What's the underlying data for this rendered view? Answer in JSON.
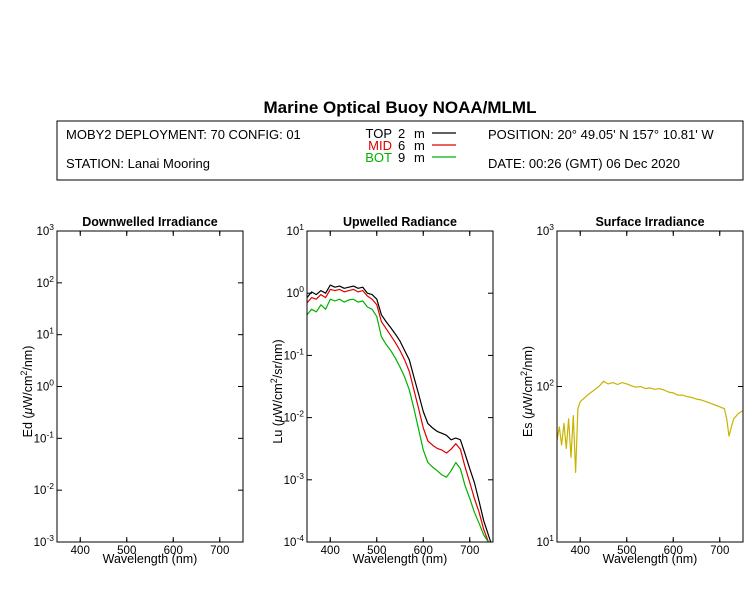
{
  "title": "Marine Optical Buoy NOAA/MLML",
  "info": {
    "deployment": "MOBY2 DEPLOYMENT: 70 CONFIG: 01",
    "station": "STATION: Lanai Mooring",
    "position": "POSITION: 20° 49.05' N   157° 10.81' W",
    "date": "DATE: 00:26 (GMT) 06 Dec 2020",
    "legend": [
      {
        "name": "TOP",
        "depth": "2",
        "unit": "m",
        "color": "#000000"
      },
      {
        "name": "MID",
        "depth": "6",
        "unit": "m",
        "color": "#dd0000"
      },
      {
        "name": "BOT",
        "depth": "9",
        "unit": "m",
        "color": "#00b000"
      }
    ]
  },
  "chart_data": [
    {
      "type": "line",
      "title": "Downwelled Irradiance",
      "xlabel": "Wavelength (nm)",
      "ylabel_base": "Ed  (",
      "ylabel_mu": "μ",
      "ylabel_unit": "W/cm",
      "ylabel_sup": "2",
      "ylabel_end": "/nm)",
      "xlim": [
        350,
        750
      ],
      "ylim_exp": [
        -3,
        3
      ],
      "xticks": [
        "400",
        "500",
        "600",
        "700"
      ],
      "ytick_exps": [
        "-3",
        "-2",
        "-1",
        "0",
        "1",
        "2",
        "3"
      ],
      "series": []
    },
    {
      "type": "line",
      "title": "Upwelled Radiance",
      "xlabel": "Wavelength (nm)",
      "ylabel_base": "Lu  (",
      "ylabel_mu": "μ",
      "ylabel_unit": "W/cm",
      "ylabel_sup": "2",
      "ylabel_end": "/sr/nm)",
      "xlim": [
        350,
        750
      ],
      "ylim_exp": [
        -4,
        1
      ],
      "xticks": [
        "400",
        "500",
        "600",
        "700"
      ],
      "ytick_exps": [
        "-4",
        "-3",
        "-2",
        "-1",
        "0",
        "1"
      ],
      "series": [
        {
          "name": "TOP",
          "color": "#000000",
          "points": [
            [
              350,
              0.85
            ],
            [
              360,
              1.05
            ],
            [
              370,
              0.95
            ],
            [
              380,
              1.1
            ],
            [
              390,
              1.0
            ],
            [
              400,
              1.35
            ],
            [
              410,
              1.25
            ],
            [
              420,
              1.3
            ],
            [
              430,
              1.2
            ],
            [
              440,
              1.25
            ],
            [
              450,
              1.3
            ],
            [
              460,
              1.2
            ],
            [
              470,
              1.25
            ],
            [
              480,
              1.0
            ],
            [
              490,
              0.95
            ],
            [
              500,
              0.8
            ],
            [
              510,
              0.45
            ],
            [
              520,
              0.35
            ],
            [
              530,
              0.28
            ],
            [
              540,
              0.22
            ],
            [
              550,
              0.17
            ],
            [
              560,
              0.12
            ],
            [
              570,
              0.085
            ],
            [
              580,
              0.045
            ],
            [
              590,
              0.024
            ],
            [
              600,
              0.0125
            ],
            [
              610,
              0.008
            ],
            [
              620,
              0.0068
            ],
            [
              630,
              0.006
            ],
            [
              640,
              0.0056
            ],
            [
              650,
              0.0052
            ],
            [
              660,
              0.0044
            ],
            [
              670,
              0.0047
            ],
            [
              680,
              0.0044
            ],
            [
              690,
              0.0026
            ],
            [
              700,
              0.0015
            ],
            [
              710,
              0.0009
            ],
            [
              720,
              0.00045
            ],
            [
              730,
              0.00022
            ],
            [
              740,
              0.00013
            ],
            [
              745,
              0.0001
            ]
          ]
        },
        {
          "name": "MID",
          "color": "#dd0000",
          "points": [
            [
              350,
              0.7
            ],
            [
              360,
              0.85
            ],
            [
              370,
              0.8
            ],
            [
              380,
              0.95
            ],
            [
              390,
              0.85
            ],
            [
              400,
              1.15
            ],
            [
              410,
              1.1
            ],
            [
              420,
              1.15
            ],
            [
              430,
              1.05
            ],
            [
              440,
              1.1
            ],
            [
              450,
              1.15
            ],
            [
              460,
              1.05
            ],
            [
              470,
              1.1
            ],
            [
              480,
              0.9
            ],
            [
              490,
              0.8
            ],
            [
              500,
              0.65
            ],
            [
              510,
              0.35
            ],
            [
              520,
              0.27
            ],
            [
              530,
              0.21
            ],
            [
              540,
              0.16
            ],
            [
              550,
              0.12
            ],
            [
              560,
              0.085
            ],
            [
              570,
              0.055
            ],
            [
              580,
              0.028
            ],
            [
              590,
              0.014
            ],
            [
              600,
              0.0068
            ],
            [
              610,
              0.0042
            ],
            [
              620,
              0.0036
            ],
            [
              630,
              0.0032
            ],
            [
              640,
              0.003
            ],
            [
              650,
              0.0027
            ],
            [
              660,
              0.0031
            ],
            [
              670,
              0.0038
            ],
            [
              680,
              0.0031
            ],
            [
              690,
              0.0016
            ],
            [
              700,
              0.0009
            ],
            [
              710,
              0.0005
            ],
            [
              720,
              0.0003
            ],
            [
              730,
              0.00016
            ],
            [
              740,
              0.0001
            ]
          ]
        },
        {
          "name": "BOT",
          "color": "#00b000",
          "points": [
            [
              350,
              0.45
            ],
            [
              360,
              0.55
            ],
            [
              370,
              0.5
            ],
            [
              380,
              0.65
            ],
            [
              390,
              0.55
            ],
            [
              400,
              0.8
            ],
            [
              410,
              0.75
            ],
            [
              420,
              0.8
            ],
            [
              430,
              0.72
            ],
            [
              440,
              0.78
            ],
            [
              450,
              0.8
            ],
            [
              460,
              0.72
            ],
            [
              470,
              0.75
            ],
            [
              480,
              0.6
            ],
            [
              490,
              0.55
            ],
            [
              500,
              0.42
            ],
            [
              510,
              0.2
            ],
            [
              520,
              0.15
            ],
            [
              530,
              0.12
            ],
            [
              540,
              0.09
            ],
            [
              550,
              0.065
            ],
            [
              560,
              0.045
            ],
            [
              570,
              0.028
            ],
            [
              580,
              0.014
            ],
            [
              590,
              0.0065
            ],
            [
              600,
              0.003
            ],
            [
              610,
              0.0019
            ],
            [
              620,
              0.0016
            ],
            [
              630,
              0.0014
            ],
            [
              640,
              0.0012
            ],
            [
              650,
              0.0011
            ],
            [
              660,
              0.0014
            ],
            [
              670,
              0.0019
            ],
            [
              680,
              0.0015
            ],
            [
              690,
              0.0008
            ],
            [
              700,
              0.0005
            ],
            [
              710,
              0.0003
            ],
            [
              720,
              0.0002
            ],
            [
              730,
              0.00013
            ],
            [
              740,
              0.0001
            ]
          ]
        }
      ]
    },
    {
      "type": "line",
      "title": "Surface Irradiance",
      "xlabel": "Wavelength (nm)",
      "ylabel_base": "Es  (",
      "ylabel_mu": "μ",
      "ylabel_unit": "W/cm",
      "ylabel_sup": "2",
      "ylabel_end": "/nm)",
      "xlim": [
        350,
        750
      ],
      "ylim_exp": [
        1,
        3
      ],
      "xticks": [
        "400",
        "500",
        "600",
        "700"
      ],
      "ytick_exps": [
        "1",
        "2",
        "3"
      ],
      "series": [
        {
          "name": "Es",
          "color": "#c8b400",
          "points": [
            [
              350,
              45
            ],
            [
              355,
              55
            ],
            [
              360,
              42
            ],
            [
              365,
              58
            ],
            [
              370,
              40
            ],
            [
              375,
              62
            ],
            [
              380,
              35
            ],
            [
              385,
              65
            ],
            [
              390,
              28
            ],
            [
              395,
              72
            ],
            [
              400,
              80
            ],
            [
              410,
              85
            ],
            [
              420,
              90
            ],
            [
              430,
              95
            ],
            [
              440,
              100
            ],
            [
              450,
              108
            ],
            [
              460,
              104
            ],
            [
              470,
              106
            ],
            [
              480,
              103
            ],
            [
              490,
              106
            ],
            [
              500,
              104
            ],
            [
              510,
              101
            ],
            [
              520,
              99
            ],
            [
              530,
              100
            ],
            [
              540,
              97
            ],
            [
              550,
              98
            ],
            [
              560,
              96
            ],
            [
              570,
              97
            ],
            [
              580,
              95
            ],
            [
              590,
              92
            ],
            [
              600,
              91
            ],
            [
              610,
              88
            ],
            [
              620,
              88
            ],
            [
              630,
              86
            ],
            [
              640,
              85
            ],
            [
              650,
              83
            ],
            [
              660,
              82
            ],
            [
              670,
              80
            ],
            [
              680,
              78
            ],
            [
              690,
              76
            ],
            [
              700,
              74
            ],
            [
              710,
              72
            ],
            [
              715,
              62
            ],
            [
              720,
              48
            ],
            [
              725,
              55
            ],
            [
              730,
              62
            ],
            [
              740,
              67
            ],
            [
              750,
              70
            ]
          ]
        }
      ]
    }
  ]
}
